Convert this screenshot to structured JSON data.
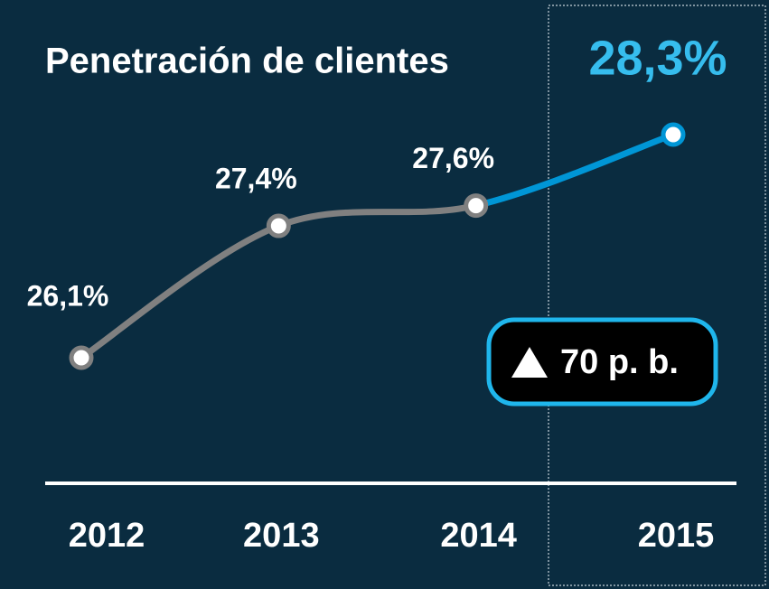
{
  "chart_data": {
    "type": "line",
    "title": "Penetración de clientes",
    "categories": [
      "2012",
      "2013",
      "2014",
      "2015"
    ],
    "values": [
      26.1,
      27.4,
      27.6,
      28.3
    ],
    "value_labels": [
      "26,1%",
      "27,4%",
      "27,6%",
      "28,3%"
    ],
    "color": "#808080",
    "highlight_color": "#0096d6",
    "annotation": "70 p. b."
  }
}
